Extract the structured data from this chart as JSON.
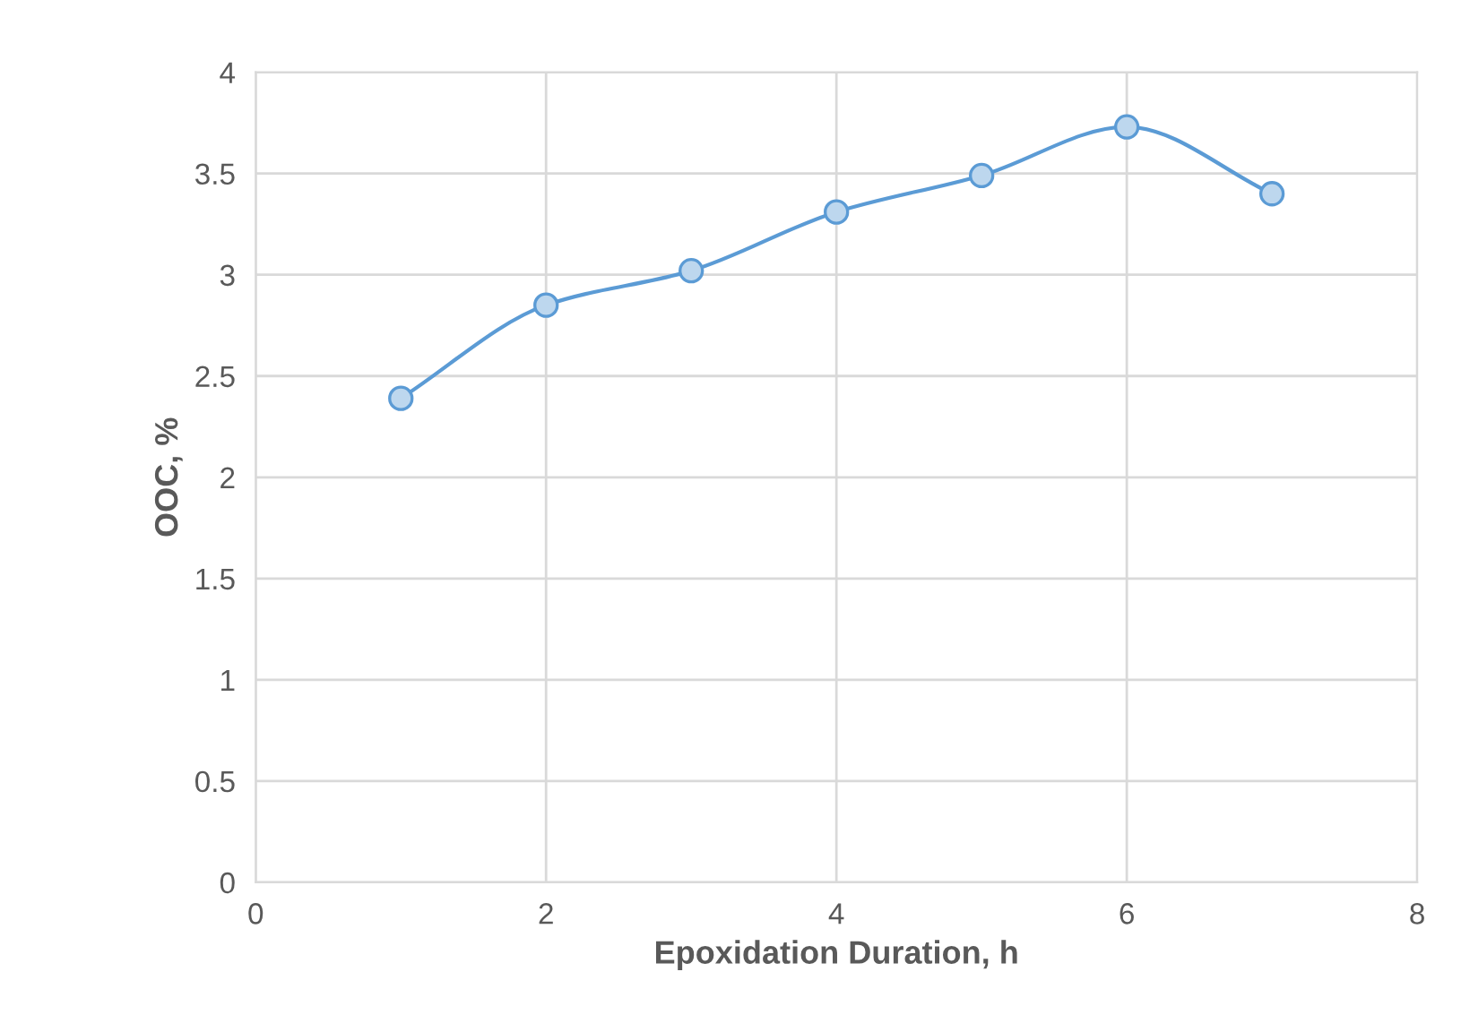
{
  "chart_data": {
    "type": "line",
    "xlabel": "Epoxidation Duration, h",
    "ylabel": "OOC, %",
    "x": [
      1,
      2,
      3,
      4,
      5,
      6,
      7
    ],
    "series": [
      {
        "color": "#5b9bd5",
        "values": [
          2.39,
          2.85,
          3.02,
          3.31,
          3.49,
          3.73,
          3.4
        ]
      }
    ],
    "xlim": [
      0,
      8
    ],
    "xticks": [
      0,
      2,
      4,
      6,
      8
    ],
    "ylim": [
      0,
      4
    ],
    "yticks": [
      0,
      0.5,
      1,
      1.5,
      2,
      2.5,
      3,
      3.5,
      4
    ],
    "grid": true,
    "marker": "circle",
    "line_style": "solid"
  }
}
